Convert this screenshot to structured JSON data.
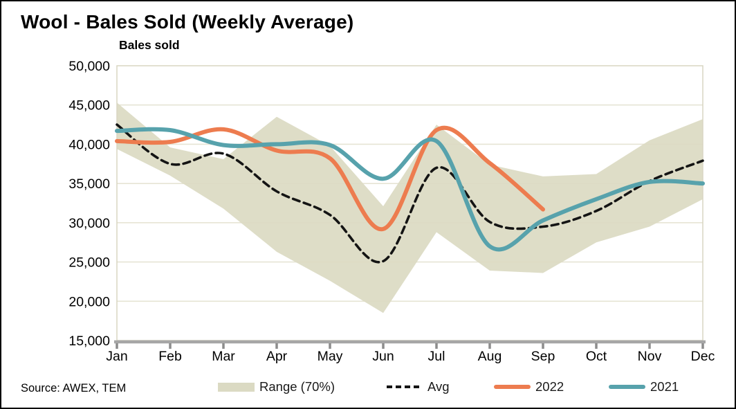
{
  "title": "Wool - Bales Sold (Weekly Average)",
  "y_axis_title": "Bales sold",
  "source": "Source: AWEX, TEM",
  "colors": {
    "range_fill": "#dbdac3",
    "avg_line": "#141414",
    "line_2022": "#ed7c4f",
    "line_2021": "#57a2ac",
    "gridline": "#e6e4d4",
    "plot_border": "#d8d5c2",
    "axis_line": "#a6a6a6",
    "tick_mark": "#8c8c8c"
  },
  "legend": [
    {
      "label": "Range (70%)",
      "type": "area",
      "color": "#dbdac3"
    },
    {
      "label": "Avg",
      "type": "dashed",
      "color": "#141414"
    },
    {
      "label": "2022",
      "type": "line",
      "color": "#ed7c4f"
    },
    {
      "label": "2021",
      "type": "line",
      "color": "#57a2ac"
    }
  ],
  "chart_data": {
    "type": "line",
    "title": "Wool - Bales Sold (Weekly Average)",
    "ylabel": "Bales sold",
    "categories": [
      "Jan",
      "Feb",
      "Mar",
      "Apr",
      "May",
      "Jun",
      "Jul",
      "Aug",
      "Sep",
      "Oct",
      "Nov",
      "Dec"
    ],
    "ylim": [
      15000,
      50000
    ],
    "yticks": [
      15000,
      20000,
      25000,
      30000,
      35000,
      40000,
      45000,
      50000
    ],
    "ytick_labels": [
      "15,000",
      "20,000",
      "25,000",
      "30,000",
      "35,000",
      "40,000",
      "45,000",
      "50,000"
    ],
    "grid": true,
    "legend_position": "bottom",
    "range_band": {
      "name": "Range (70%)",
      "high": [
        45300,
        39600,
        38100,
        43500,
        39800,
        32100,
        42500,
        37400,
        35900,
        36200,
        40500,
        43200
      ],
      "low": [
        39400,
        36000,
        31800,
        26300,
        22600,
        18500,
        28800,
        23900,
        23600,
        27500,
        29500,
        33000
      ]
    },
    "series": [
      {
        "name": "Avg",
        "style": "dashed",
        "values": [
          42500,
          37500,
          38800,
          34000,
          31000,
          25100,
          37000,
          30100,
          29500,
          31500,
          35300,
          37900
        ]
      },
      {
        "name": "2022",
        "style": "solid",
        "values": [
          40400,
          40300,
          41900,
          39200,
          38200,
          29200,
          41800,
          37600,
          31700
        ]
      },
      {
        "name": "2021",
        "style": "solid",
        "values": [
          41700,
          41800,
          39900,
          40000,
          39900,
          35600,
          40400,
          27000,
          30300,
          33000,
          35200,
          35000
        ]
      }
    ]
  }
}
